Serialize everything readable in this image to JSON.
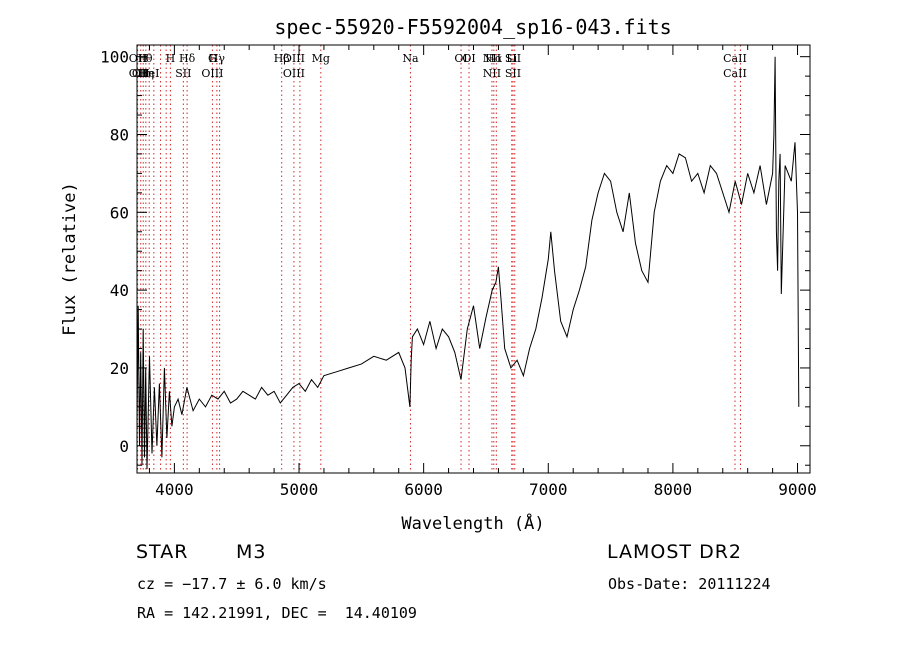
{
  "chart_data": {
    "type": "line",
    "title": "spec-55920-F5592004_sp16-043.fits",
    "xlabel": "Wavelength (Å)",
    "ylabel": "Flux (relative)",
    "xlim": [
      3700,
      9100
    ],
    "ylim": [
      -7,
      103
    ],
    "xticks": [
      4000,
      5000,
      6000,
      7000,
      8000,
      9000
    ],
    "yticks": [
      0,
      20,
      40,
      60,
      80,
      100
    ],
    "grid": false,
    "series": [
      {
        "x": [
          3700,
          3710,
          3720,
          3730,
          3740,
          3750,
          3760,
          3770,
          3780,
          3790,
          3800,
          3820,
          3840,
          3860,
          3880,
          3900,
          3920,
          3940,
          3960,
          3980,
          4000,
          4030,
          4060,
          4100,
          4150,
          4200,
          4250,
          4300,
          4350,
          4400,
          4450,
          4500,
          4550,
          4600,
          4650,
          4700,
          4750,
          4800,
          4850,
          4900,
          4950,
          5000,
          5050,
          5100,
          5150,
          5200,
          5300,
          5400,
          5500,
          5600,
          5700,
          5800,
          5850,
          5890,
          5900,
          5910,
          5950,
          6000,
          6050,
          6100,
          6150,
          6200,
          6250,
          6300,
          6350,
          6400,
          6450,
          6500,
          6550,
          6580,
          6600,
          6620,
          6650,
          6700,
          6750,
          6800,
          6850,
          6900,
          6950,
          7000,
          7020,
          7050,
          7100,
          7150,
          7200,
          7250,
          7300,
          7350,
          7400,
          7450,
          7500,
          7550,
          7600,
          7650,
          7700,
          7750,
          7800,
          7850,
          7900,
          7950,
          8000,
          8050,
          8100,
          8150,
          8200,
          8250,
          8300,
          8350,
          8400,
          8450,
          8500,
          8550,
          8600,
          8650,
          8700,
          8750,
          8800,
          8810,
          8820,
          8830,
          8840,
          8850,
          8860,
          8870,
          8900,
          8950,
          8980,
          9000,
          9010
        ],
        "y": [
          5,
          36,
          0,
          24,
          -5,
          30,
          -3,
          20,
          -6,
          8,
          23,
          -2,
          15,
          0,
          16,
          -3,
          20,
          2,
          14,
          5,
          10,
          12,
          8,
          15,
          9,
          12,
          10,
          13,
          12,
          14,
          11,
          12,
          14,
          13,
          12,
          15,
          13,
          14,
          11,
          13,
          15,
          16,
          14,
          17,
          15,
          18,
          19,
          20,
          21,
          23,
          22,
          24,
          20,
          10,
          22,
          28,
          30,
          26,
          32,
          25,
          30,
          28,
          24,
          17,
          30,
          36,
          25,
          33,
          40,
          42,
          46,
          38,
          25,
          20,
          22,
          18,
          25,
          30,
          38,
          48,
          55,
          45,
          32,
          28,
          35,
          40,
          46,
          58,
          65,
          70,
          68,
          60,
          55,
          65,
          52,
          45,
          42,
          60,
          68,
          72,
          70,
          75,
          74,
          68,
          70,
          65,
          72,
          70,
          65,
          60,
          68,
          62,
          70,
          65,
          72,
          62,
          70,
          80,
          100,
          55,
          45,
          68,
          75,
          39,
          72,
          68,
          78,
          60,
          10
        ]
      }
    ],
    "lines": [
      {
        "wl": 3705,
        "labels": [
          "OII",
          "OII"
        ]
      },
      {
        "wl": 3730,
        "labels": [
          "",
          "OII"
        ]
      },
      {
        "wl": 3750,
        "labels": [
          "H",
          ""
        ]
      },
      {
        "wl": 3771,
        "labels": [
          "",
          "Hη"
        ]
      },
      {
        "wl": 3798,
        "labels": [
          "θ",
          "HeI"
        ]
      },
      {
        "wl": 3835,
        "labels": [
          "",
          ""
        ]
      },
      {
        "wl": 3889,
        "labels": [
          "",
          ""
        ]
      },
      {
        "wl": 3934,
        "labels": [
          "",
          ""
        ]
      },
      {
        "wl": 3968,
        "labels": [
          "H",
          ""
        ]
      },
      {
        "wl": 4072,
        "labels": [
          "",
          "SII"
        ]
      },
      {
        "wl": 4102,
        "labels": [
          "Hδ",
          ""
        ]
      },
      {
        "wl": 4305,
        "labels": [
          "G",
          "OIII"
        ]
      },
      {
        "wl": 4341,
        "labels": [
          "Hγ",
          ""
        ]
      },
      {
        "wl": 4363,
        "labels": [
          "",
          ""
        ]
      },
      {
        "wl": 4861,
        "labels": [
          "Hβ",
          ""
        ]
      },
      {
        "wl": 4959,
        "labels": [
          "OIII",
          "OIII"
        ]
      },
      {
        "wl": 5007,
        "labels": [
          "",
          ""
        ]
      },
      {
        "wl": 5175,
        "labels": [
          "Mg",
          ""
        ]
      },
      {
        "wl": 5894,
        "labels": [
          "Na",
          ""
        ]
      },
      {
        "wl": 6300,
        "labels": [
          "OI",
          ""
        ]
      },
      {
        "wl": 6364,
        "labels": [
          "OI",
          ""
        ]
      },
      {
        "wl": 6548,
        "labels": [
          "NII",
          "NII"
        ]
      },
      {
        "wl": 6563,
        "labels": [
          "Hα",
          ""
        ]
      },
      {
        "wl": 6583,
        "labels": [
          "",
          ""
        ]
      },
      {
        "wl": 6707,
        "labels": [
          "Li",
          ""
        ]
      },
      {
        "wl": 6717,
        "labels": [
          "SII",
          "SII"
        ]
      },
      {
        "wl": 6731,
        "labels": [
          "",
          ""
        ]
      },
      {
        "wl": 8498,
        "labels": [
          "CaII",
          "CaII"
        ]
      },
      {
        "wl": 8542,
        "labels": [
          "",
          ""
        ]
      }
    ],
    "line_color": "#000000",
    "marker_color": "#d62728"
  },
  "info": {
    "object_type": "STAR",
    "subclass": "M3",
    "survey": "LAMOST DR2",
    "cz": "cz = −17.7 ± 6.0 km/s",
    "obs_date": "Obs-Date: 20111224",
    "radec": "RA = 142.21991, DEC =  14.40109"
  }
}
